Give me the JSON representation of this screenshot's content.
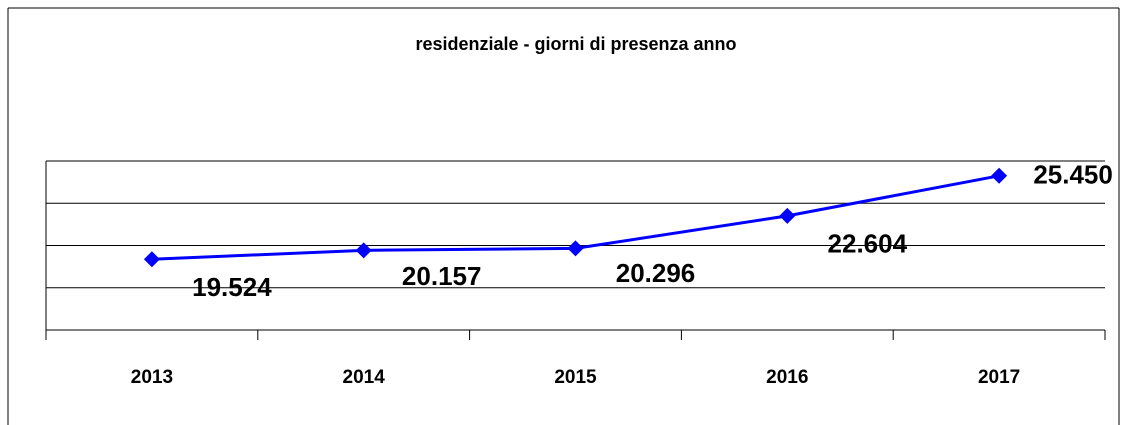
{
  "chart_data": {
    "type": "line",
    "title": "residenziale - giorni di presenza anno",
    "categories": [
      "2013",
      "2014",
      "2015",
      "2016",
      "2017"
    ],
    "series": [
      {
        "name": "residenziale",
        "color": "#0000ff",
        "values": [
          19524,
          20157,
          20296,
          22604,
          25450
        ],
        "value_labels": [
          "19.524",
          "20.157",
          "20.296",
          "22.604",
          "25.450"
        ]
      }
    ],
    "ylim": [
      14500,
      26500
    ],
    "yticks": [
      14500,
      17500,
      20500,
      23500,
      26500
    ],
    "grid": true
  }
}
